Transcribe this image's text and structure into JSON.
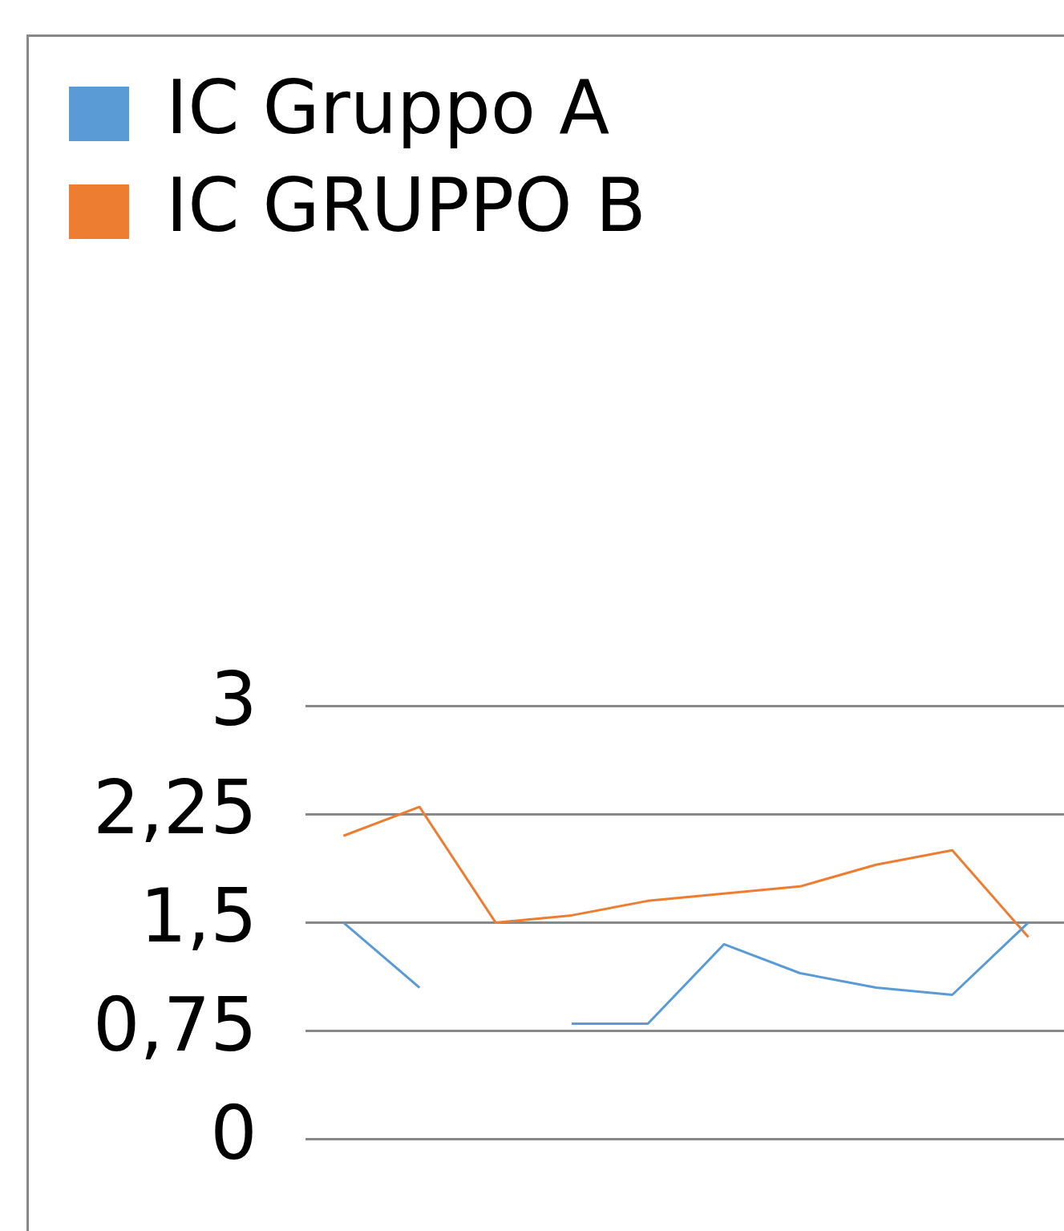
{
  "chart_data": {
    "type": "line",
    "categories": [
      null,
      null,
      null,
      null,
      null,
      null,
      null,
      null,
      null,
      null
    ],
    "series": [
      {
        "name": "IC Gruppo A",
        "color": "#5b9bd5",
        "values": [
          1.5,
          1.05,
          null,
          0.8,
          0.8,
          1.35,
          1.15,
          1.05,
          1.0,
          1.5
        ]
      },
      {
        "name": "IC GRUPPO B",
        "color": "#ed7d31",
        "values": [
          2.1,
          2.3,
          1.5,
          1.55,
          1.65,
          1.7,
          1.75,
          1.9,
          2.0,
          1.4
        ]
      }
    ],
    "ylim": [
      0,
      3
    ],
    "yticks": [
      0,
      {
        "value": 0.75,
        "label": "0,75"
      },
      {
        "value": 1.5,
        "label": "1,5"
      },
      {
        "value": 2.25,
        "label": "2,25"
      },
      3
    ],
    "grid": "y",
    "legend": "top left",
    "tick_labels": "y",
    "marker": "none"
  }
}
